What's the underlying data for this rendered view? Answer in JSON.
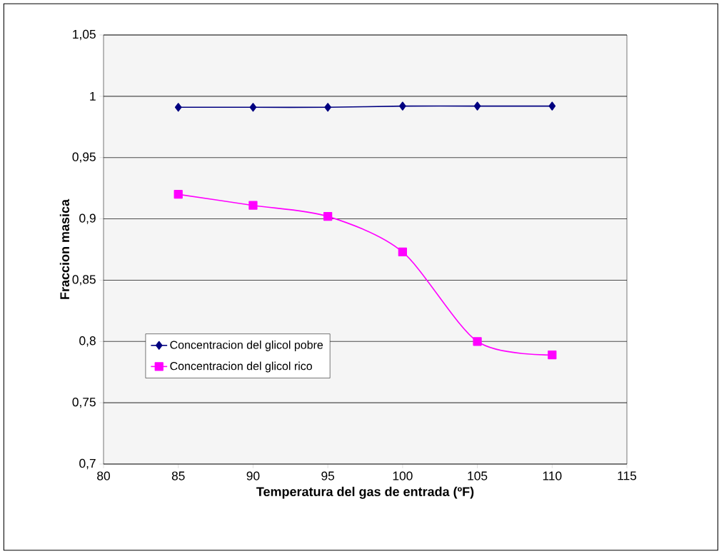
{
  "chart_data": {
    "type": "line",
    "xlabel": "Temperatura del gas de entrada (ºF)",
    "ylabel": "Fraccion masica",
    "x": [
      85,
      90,
      95,
      100,
      105,
      110
    ],
    "series": [
      {
        "name": "Concentracion del glicol pobre",
        "color": "#000080",
        "marker": "diamond",
        "values": [
          0.991,
          0.991,
          0.991,
          0.992,
          0.992,
          0.992
        ]
      },
      {
        "name": "Concentracion del glicol rico",
        "color": "#ff00ff",
        "marker": "square",
        "values": [
          0.92,
          0.911,
          0.902,
          0.873,
          0.8,
          0.789
        ]
      }
    ],
    "xlim": [
      80,
      115
    ],
    "xticks": [
      80,
      85,
      90,
      95,
      100,
      105,
      110,
      115
    ],
    "ylim": [
      0.7,
      1.05
    ],
    "yticks": [
      {
        "value": 0.7,
        "label": "0,7"
      },
      {
        "value": 0.75,
        "label": "0,75"
      },
      {
        "value": 0.8,
        "label": "0,8"
      },
      {
        "value": 0.85,
        "label": "0,85"
      },
      {
        "value": 0.9,
        "label": "0,9"
      },
      {
        "value": 0.95,
        "label": "0,95"
      },
      {
        "value": 1,
        "label": "1"
      },
      {
        "value": 1.05,
        "label": "1,05"
      }
    ],
    "grid": "y",
    "legend": "left",
    "line_style": "solid"
  }
}
